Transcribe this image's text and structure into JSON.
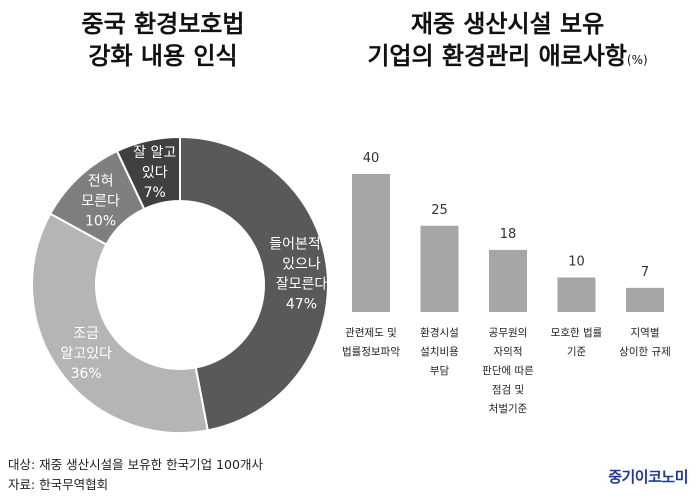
{
  "left_title": {
    "line1": "중국 환경보호법",
    "line2": "강화 내용 인식"
  },
  "right_title": {
    "line1": "재중 생산시설 보유",
    "line2": "기업의 환경관리 애로사항",
    "unit": "(%)"
  },
  "chart_data": [
    {
      "type": "pie",
      "title": "중국 환경보호법 강화 내용 인식",
      "slices": [
        {
          "label": "들어본적은 있으나 잘모른다",
          "value": 47,
          "color": "#595959"
        },
        {
          "label": "조금 알고있다",
          "value": 36,
          "color": "#b5b5b5"
        },
        {
          "label": "전혀 모른다",
          "value": 10,
          "color": "#7f7f7f"
        },
        {
          "label": "잘 알고 있다",
          "value": 7,
          "color": "#404040"
        }
      ],
      "slice_text": [
        [
          "들어본적은",
          "있으나",
          "잘모른다",
          "47%"
        ],
        [
          "조금",
          "알고있다",
          "36%"
        ],
        [
          "전혀",
          "모른다",
          "10%"
        ],
        [
          "잘 알고",
          "있다",
          "7%"
        ]
      ]
    },
    {
      "type": "bar",
      "title": "재중 생산시설 보유 기업의 환경관리 애로사항",
      "unit": "(%)",
      "categories": [
        "관련제도 및\n법률정보파악",
        "환경시설\n설치비용\n부담",
        "공무원의\n자의적\n판단에 따른\n점검 및\n처벌기준",
        "모호한 법률\n기준",
        "지역별\n상이한 규제"
      ],
      "values": [
        40,
        25,
        18,
        10,
        7
      ],
      "ylim": [
        0,
        40
      ],
      "bar_color": "#a6a6a6"
    }
  ],
  "footer": {
    "subject": "대상: 재중 생산시설을 보유한 한국기업 100개사",
    "source": "자료: 한국무역협회"
  },
  "brand": "중기이코노미"
}
